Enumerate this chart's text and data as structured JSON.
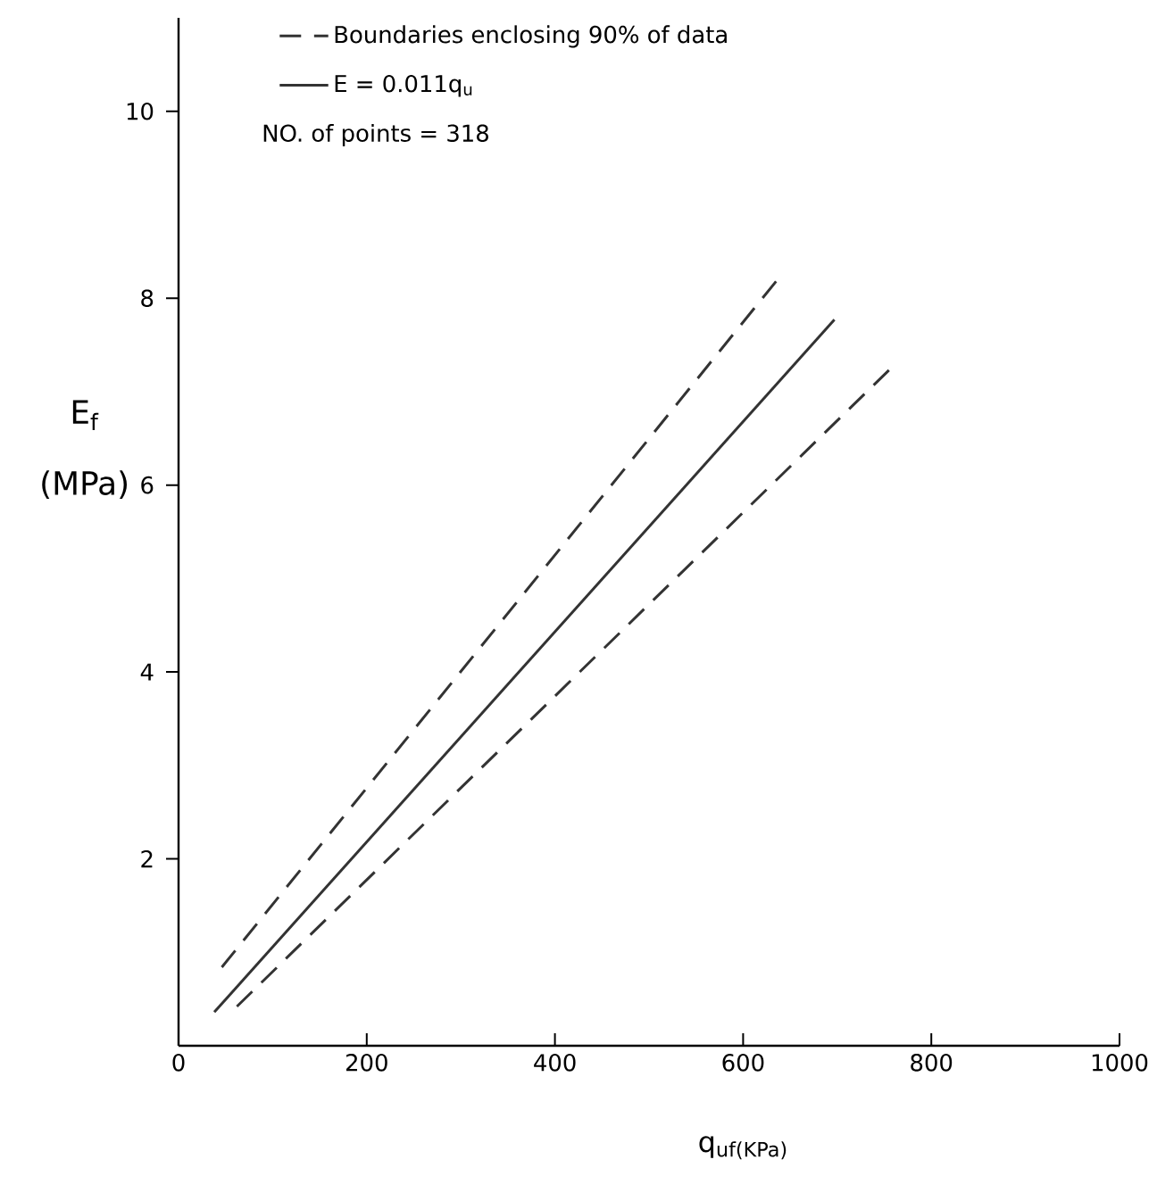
{
  "chart_data": {
    "type": "line",
    "xlabel": "q$_{uf(KPa)}$",
    "ylabel": "E$_{f}$ (MPa)",
    "xlim": [
      0,
      1000
    ],
    "ylim": [
      0,
      11
    ],
    "xticks": [
      0,
      200,
      400,
      600,
      800,
      1000
    ],
    "yticks": [
      2,
      4,
      6,
      8,
      10
    ],
    "legend": "top left",
    "annotations": [
      "NO. of points = 318"
    ],
    "series": [
      {
        "name": "Boundaries enclosing 90% of data",
        "color": "#333333",
        "line_style": "dashed",
        "x": [
          46,
          635
        ],
        "values": [
          0.84,
          8.18
        ]
      },
      {
        "name": "E = 0.011q$_{u}$",
        "color": "#333333",
        "line_style": "solid",
        "x": [
          38,
          697
        ],
        "values": [
          0.36,
          7.77
        ]
      },
      {
        "color": "#333333",
        "line_style": "dashed",
        "x": [
          62,
          755
        ],
        "values": [
          0.42,
          7.23
        ]
      }
    ]
  }
}
